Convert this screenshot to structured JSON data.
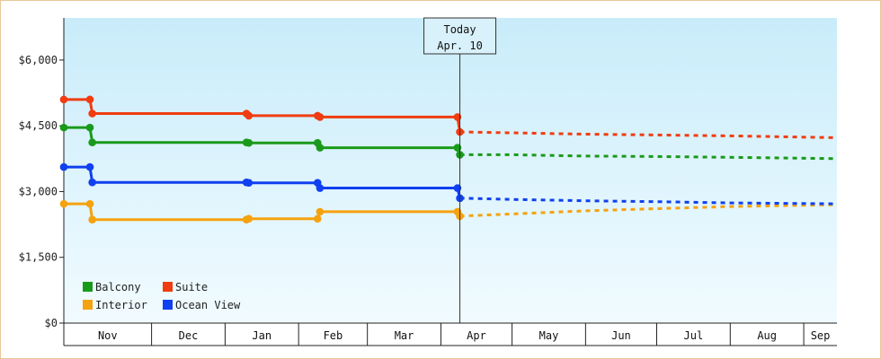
{
  "chart_data": {
    "type": "line",
    "x": [
      "Oct 25",
      "Nov 5",
      "Nov 6",
      "Jan 10",
      "Jan 11",
      "Feb 9",
      "Feb 10",
      "Apr 8",
      "Apr 9",
      "Apr 10",
      "May 1",
      "Jun 1",
      "Jul 1",
      "Aug 1",
      "Sep 1",
      "Sep 15"
    ],
    "y_ticks": [
      "$0",
      "$1,500",
      "$3,000",
      "$4,500",
      "$6,000"
    ],
    "ylim": [
      0,
      6000
    ],
    "ytick_step": 1500,
    "x_month_labels": [
      "Nov",
      "Dec",
      "Jan",
      "Feb",
      "Mar",
      "Apr",
      "May",
      "Jun",
      "Jul",
      "Aug",
      "Sep"
    ],
    "today": {
      "label": "Today",
      "date": "Apr. 10"
    },
    "grid": false,
    "legend_position": "bottom-left",
    "series": [
      {
        "name": "Balcony",
        "color": "#1a9a1a",
        "actual": [
          [
            "Oct 25",
            4460
          ],
          [
            "Nov 5",
            4460
          ],
          [
            "Nov 6",
            4120
          ],
          [
            "Jan 10",
            4120
          ],
          [
            "Jan 11",
            4110
          ],
          [
            "Feb 9",
            4110
          ],
          [
            "Feb 10",
            4000
          ],
          [
            "Apr 8",
            4000
          ],
          [
            "Apr 9",
            3840
          ]
        ],
        "forecast": [
          [
            "Apr 9",
            3840
          ],
          [
            "May 1",
            3840
          ],
          [
            "Jun 1",
            3810
          ],
          [
            "Jul 1",
            3800
          ],
          [
            "Aug 1",
            3780
          ],
          [
            "Sep 15",
            3750
          ]
        ]
      },
      {
        "name": "Suite",
        "color": "#f03c10",
        "actual": [
          [
            "Oct 25",
            5100
          ],
          [
            "Nov 5",
            5100
          ],
          [
            "Nov 6",
            4780
          ],
          [
            "Jan 10",
            4780
          ],
          [
            "Jan 11",
            4730
          ],
          [
            "Feb 9",
            4730
          ],
          [
            "Feb 10",
            4700
          ],
          [
            "Apr 8",
            4700
          ],
          [
            "Apr 9",
            4360
          ]
        ],
        "forecast": [
          [
            "Apr 9",
            4360
          ],
          [
            "May 1",
            4340
          ],
          [
            "Jun 1",
            4310
          ],
          [
            "Jul 1",
            4290
          ],
          [
            "Aug 1",
            4270
          ],
          [
            "Sep 15",
            4230
          ]
        ]
      },
      {
        "name": "Interior",
        "color": "#f5a20f",
        "actual": [
          [
            "Oct 25",
            2720
          ],
          [
            "Nov 5",
            2720
          ],
          [
            "Nov 6",
            2360
          ],
          [
            "Jan 10",
            2360
          ],
          [
            "Jan 11",
            2380
          ],
          [
            "Feb 9",
            2380
          ],
          [
            "Feb 10",
            2540
          ],
          [
            "Apr 8",
            2540
          ],
          [
            "Apr 9",
            2440
          ]
        ],
        "forecast": [
          [
            "Apr 9",
            2440
          ],
          [
            "May 1",
            2490
          ],
          [
            "Jun 1",
            2560
          ],
          [
            "Jul 1",
            2610
          ],
          [
            "Aug 1",
            2660
          ],
          [
            "Sep 15",
            2700
          ]
        ]
      },
      {
        "name": "Ocean View",
        "color": "#1040f0",
        "actual": [
          [
            "Oct 25",
            3560
          ],
          [
            "Nov 5",
            3560
          ],
          [
            "Nov 6",
            3210
          ],
          [
            "Jan 10",
            3210
          ],
          [
            "Jan 11",
            3200
          ],
          [
            "Feb 9",
            3200
          ],
          [
            "Feb 10",
            3080
          ],
          [
            "Apr 8",
            3080
          ],
          [
            "Apr 9",
            2850
          ]
        ],
        "forecast": [
          [
            "Apr 9",
            2850
          ],
          [
            "May 1",
            2820
          ],
          [
            "Jun 1",
            2790
          ],
          [
            "Jul 1",
            2770
          ],
          [
            "Aug 1",
            2740
          ],
          [
            "Sep 15",
            2720
          ]
        ]
      }
    ],
    "legend_order": [
      "Balcony",
      "Suite",
      "Interior",
      "Ocean View"
    ]
  }
}
